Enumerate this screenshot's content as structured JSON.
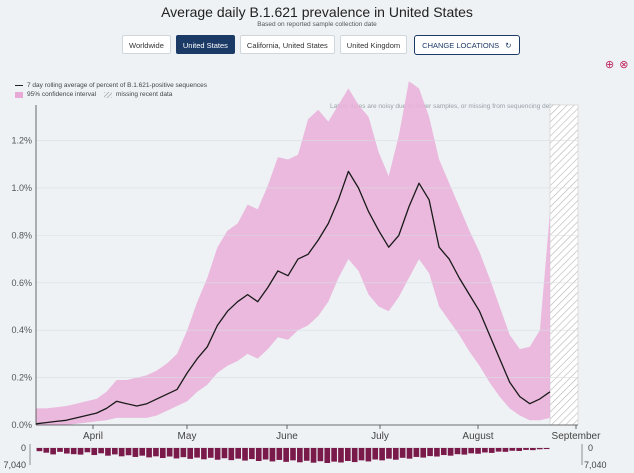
{
  "header": {
    "title": "Average daily B.1.621 prevalence in United States",
    "subtitle": "Based on reported sample collection date"
  },
  "locations": {
    "buttons": [
      "Worldwide",
      "United States",
      "California, United States",
      "United Kingdom"
    ],
    "active": "United States",
    "change_label": "CHANGE LOCATIONS",
    "change_icon": "refresh-icon"
  },
  "zoom": {
    "in_icon": "zoom-in-icon",
    "reset_icon": "reset-zoom-icon"
  },
  "legend": {
    "line": "7 day rolling average of percent of B.1.621-positive sequences",
    "ci": "95% confidence interval",
    "missing": "missing recent data"
  },
  "note": "Latest dates are noisy due to fewer samples, or missing from sequencing delays",
  "colors": {
    "line": "#1a1a1a",
    "ci": "#e9b3da",
    "bars": "#7a1a4a",
    "accent": "#c0265a",
    "active": "#1c3a66"
  },
  "chart_data": {
    "type": "line",
    "x_labels": [
      "April",
      "May",
      "June",
      "July",
      "August",
      "September"
    ],
    "y_ticks": [
      "0.0%",
      "0.2%",
      "0.4%",
      "0.6%",
      "0.8%",
      "1.0%",
      "1.2%"
    ],
    "ylim": [
      0,
      1.35
    ],
    "y_unit": "%",
    "sample_axis": {
      "left_top": "0",
      "left_bottom": "7,040",
      "right_top": "0",
      "right_bottom": "7,040"
    },
    "series": [
      {
        "values": [
          0.005,
          0.01,
          0.015,
          0.02,
          0.03,
          0.04,
          0.05,
          0.07,
          0.1,
          0.09,
          0.08,
          0.09,
          0.11,
          0.13,
          0.15,
          0.22,
          0.28,
          0.33,
          0.42,
          0.48,
          0.52,
          0.55,
          0.52,
          0.58,
          0.65,
          0.63,
          0.7,
          0.72,
          0.78,
          0.85,
          0.95,
          1.07,
          1.0,
          0.9,
          0.82,
          0.75,
          0.8,
          0.92,
          1.02,
          0.95,
          0.75,
          0.7,
          0.62,
          0.55,
          0.48,
          0.38,
          0.28,
          0.18,
          0.12,
          0.09,
          0.11,
          0.14
        ],
        "ci_upper": [
          0.07,
          0.07,
          0.075,
          0.08,
          0.09,
          0.1,
          0.11,
          0.14,
          0.19,
          0.19,
          0.2,
          0.21,
          0.23,
          0.26,
          0.3,
          0.4,
          0.52,
          0.62,
          0.75,
          0.82,
          0.85,
          0.93,
          0.91,
          1.01,
          1.13,
          1.12,
          1.14,
          1.29,
          1.33,
          1.28,
          1.35,
          1.42,
          1.35,
          1.3,
          1.15,
          1.05,
          1.22,
          1.45,
          1.42,
          1.3,
          1.12,
          1.02,
          0.92,
          0.82,
          0.73,
          0.62,
          0.5,
          0.38,
          0.32,
          0.33,
          0.4,
          0.9
        ],
        "ci_lower": [
          0.0,
          0.0,
          0.0,
          0.0,
          0.005,
          0.01,
          0.015,
          0.02,
          0.03,
          0.03,
          0.03,
          0.03,
          0.04,
          0.06,
          0.08,
          0.1,
          0.14,
          0.17,
          0.22,
          0.25,
          0.27,
          0.3,
          0.28,
          0.32,
          0.37,
          0.36,
          0.4,
          0.42,
          0.46,
          0.52,
          0.62,
          0.7,
          0.65,
          0.55,
          0.5,
          0.48,
          0.54,
          0.62,
          0.7,
          0.64,
          0.5,
          0.44,
          0.38,
          0.31,
          0.25,
          0.18,
          0.12,
          0.07,
          0.04,
          0.02,
          0.02,
          0.03
        ]
      }
    ],
    "sample_counts": [
      1500,
      2200,
      3000,
      1800,
      2600,
      2900,
      3100,
      2000,
      3300,
      2500,
      3600,
      3000,
      3900,
      3400,
      4200,
      3600,
      4400,
      3900,
      4700,
      4000,
      4900,
      4300,
      5100,
      4500,
      5300,
      4600,
      5500,
      4800,
      5700,
      5000,
      5900,
      5200,
      6100,
      5400,
      6300,
      5600,
      6500,
      5800,
      6700,
      6000,
      6900,
      6200,
      7040,
      6400,
      6800,
      6100,
      6600,
      5800,
      6300,
      5400,
      5800,
      5000,
      5500,
      4600,
      5000,
      4200,
      4500,
      3800,
      4000,
      3300,
      3600,
      2900,
      3100,
      2500,
      2700,
      2100,
      2300,
      1700,
      1800,
      1300,
      1400,
      900,
      1000,
      600,
      500
    ],
    "missing_region": "from last data point to September"
  }
}
